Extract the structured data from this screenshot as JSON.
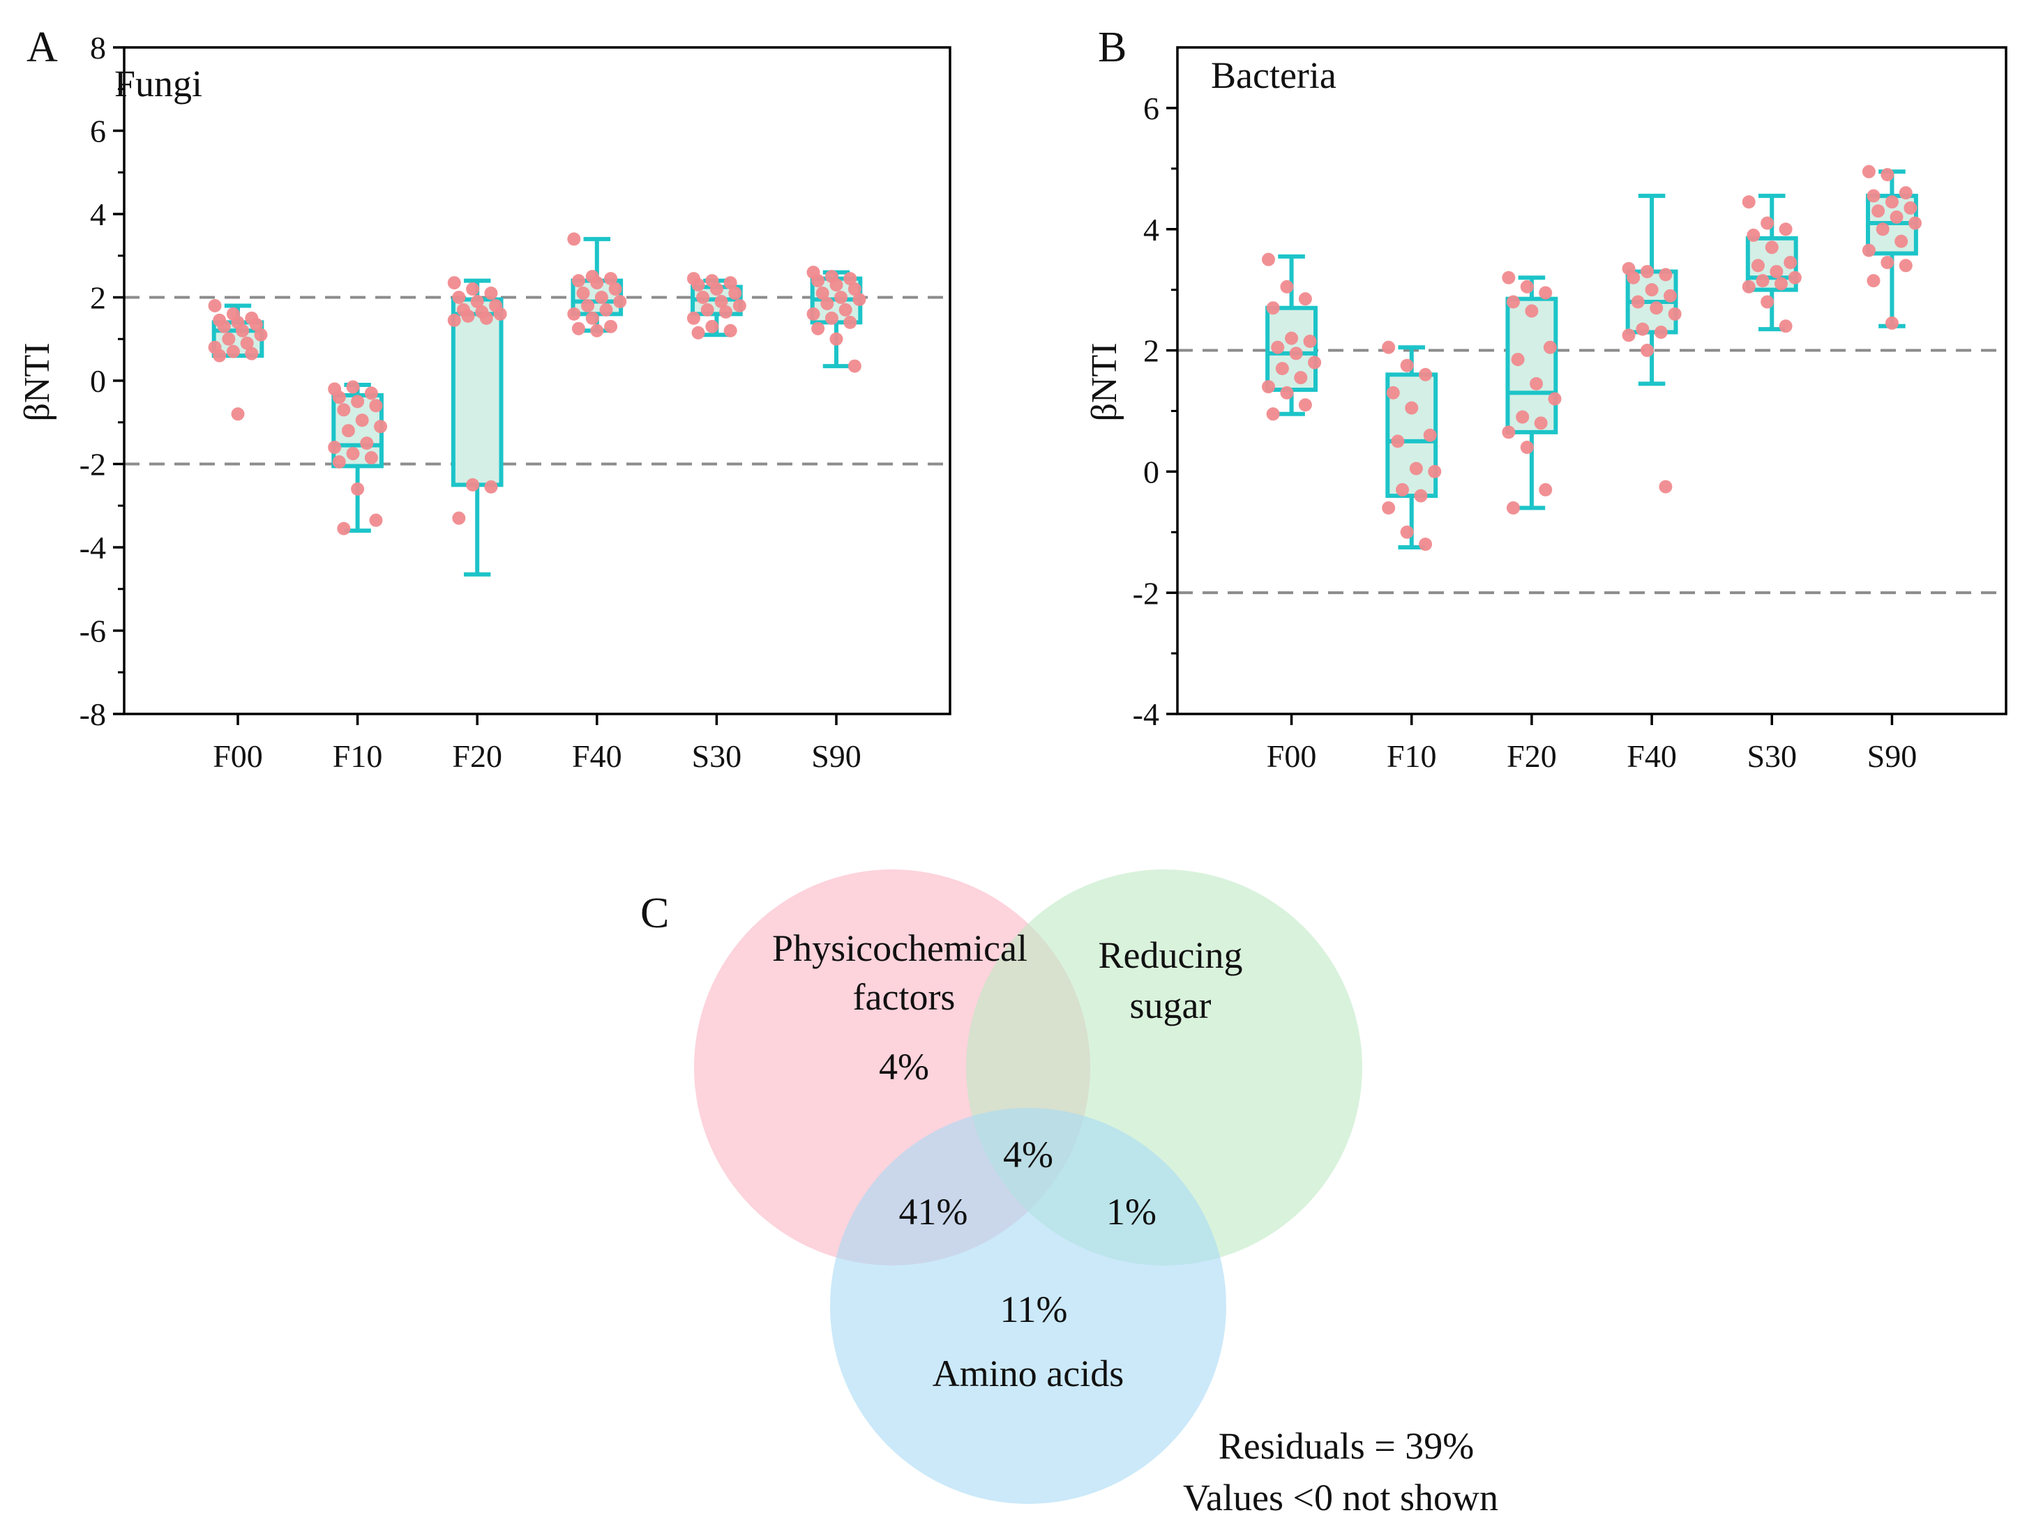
{
  "style": {
    "box_stroke": "#1cc4c8",
    "box_fill": "#d4efe6",
    "point_color": "#f08a8e",
    "threshold_line": "#8c8c8c",
    "axis_color": "#000000",
    "venn_colors": [
      "#fbb6c4",
      "#bfe9c4",
      "#a9daf5"
    ]
  },
  "chart_data": [
    {
      "type": "box",
      "panel_label": "A",
      "title": "Fungi",
      "xlabel": "",
      "ylabel": "βNTI",
      "categories": [
        "F00",
        "F10",
        "F20",
        "F40",
        "S30",
        "S90"
      ],
      "ylim": [
        -8,
        8
      ],
      "yticks": [
        -8,
        -6,
        -4,
        -2,
        0,
        2,
        4,
        6,
        8
      ],
      "threshold_lines": [
        2,
        -2
      ],
      "boxes": [
        {
          "category": "F00",
          "whisker_low": 0.6,
          "q1": 0.6,
          "median": 1.2,
          "q3": 1.4,
          "whisker_high": 1.8,
          "points": [
            1.8,
            1.6,
            1.5,
            1.45,
            1.4,
            1.35,
            1.3,
            1.2,
            1.1,
            1.0,
            0.9,
            0.8,
            0.7,
            0.65,
            0.6,
            -0.8
          ]
        },
        {
          "category": "F10",
          "whisker_low": -3.6,
          "q1": -2.05,
          "median": -1.55,
          "q3": -0.35,
          "whisker_high": -0.1,
          "points": [
            -0.2,
            -0.15,
            -0.3,
            -0.4,
            -0.5,
            -0.6,
            -0.7,
            -0.95,
            -1.1,
            -1.2,
            -1.5,
            -1.6,
            -1.75,
            -1.85,
            -1.95,
            -2.6,
            -3.35,
            -3.55
          ]
        },
        {
          "category": "F20",
          "whisker_low": -4.65,
          "q1": -2.5,
          "median": 1.6,
          "q3": 1.95,
          "whisker_high": 2.4,
          "points": [
            2.35,
            2.2,
            2.1,
            2.0,
            1.9,
            1.8,
            1.7,
            1.65,
            1.6,
            1.55,
            1.5,
            1.45,
            -2.5,
            -2.55,
            -3.3
          ]
        },
        {
          "category": "F40",
          "whisker_low": 1.2,
          "q1": 1.6,
          "median": 1.9,
          "q3": 2.4,
          "whisker_high": 3.4,
          "points": [
            3.4,
            2.5,
            2.45,
            2.4,
            2.35,
            2.2,
            2.1,
            2.0,
            1.9,
            1.8,
            1.7,
            1.6,
            1.5,
            1.3,
            1.25,
            1.2
          ]
        },
        {
          "category": "S30",
          "whisker_low": 1.1,
          "q1": 1.6,
          "median": 1.95,
          "q3": 2.25,
          "whisker_high": 2.4,
          "points": [
            2.45,
            2.4,
            2.35,
            2.3,
            2.2,
            2.1,
            2.0,
            1.9,
            1.8,
            1.7,
            1.65,
            1.5,
            1.3,
            1.2,
            1.15
          ]
        },
        {
          "category": "S90",
          "whisker_low": 0.35,
          "q1": 1.4,
          "median": 1.95,
          "q3": 2.45,
          "whisker_high": 2.6,
          "points": [
            2.6,
            2.5,
            2.45,
            2.4,
            2.3,
            2.2,
            2.1,
            2.0,
            1.95,
            1.85,
            1.7,
            1.6,
            1.5,
            1.4,
            1.25,
            1.0,
            0.35
          ]
        }
      ]
    },
    {
      "type": "box",
      "panel_label": "B",
      "title": "Bacteria",
      "xlabel": "",
      "ylabel": "βNTI",
      "categories": [
        "F00",
        "F10",
        "F20",
        "F40",
        "S30",
        "S90"
      ],
      "ylim": [
        -4,
        7
      ],
      "yticks": [
        -4,
        -2,
        0,
        2,
        4,
        6
      ],
      "threshold_lines": [
        2,
        -2
      ],
      "boxes": [
        {
          "category": "F00",
          "whisker_low": 0.95,
          "q1": 1.35,
          "median": 1.95,
          "q3": 2.7,
          "whisker_high": 3.55,
          "points": [
            3.5,
            3.05,
            2.85,
            2.7,
            2.2,
            2.15,
            2.05,
            1.95,
            1.8,
            1.7,
            1.55,
            1.4,
            1.3,
            1.1,
            0.95
          ]
        },
        {
          "category": "F10",
          "whisker_low": -1.25,
          "q1": -0.4,
          "median": 0.5,
          "q3": 1.6,
          "whisker_high": 2.05,
          "points": [
            2.05,
            1.75,
            1.6,
            1.3,
            1.05,
            0.6,
            0.5,
            0.05,
            0.0,
            -0.3,
            -0.4,
            -0.6,
            -1.0,
            -1.2
          ]
        },
        {
          "category": "F20",
          "whisker_low": -0.6,
          "q1": 0.65,
          "median": 1.3,
          "q3": 2.85,
          "whisker_high": 3.2,
          "points": [
            3.2,
            3.05,
            2.95,
            2.8,
            2.65,
            2.05,
            1.85,
            1.45,
            1.2,
            0.9,
            0.8,
            0.65,
            0.4,
            -0.3,
            -0.6
          ]
        },
        {
          "category": "F40",
          "whisker_low": 1.45,
          "q1": 2.3,
          "median": 2.8,
          "q3": 3.3,
          "whisker_high": 4.55,
          "points": [
            3.35,
            3.3,
            3.25,
            3.2,
            3.0,
            2.9,
            2.8,
            2.7,
            2.6,
            2.35,
            2.3,
            2.25,
            2.0,
            -0.25
          ]
        },
        {
          "category": "S30",
          "whisker_low": 2.35,
          "q1": 3.0,
          "median": 3.2,
          "q3": 3.85,
          "whisker_high": 4.55,
          "points": [
            4.45,
            4.1,
            4.0,
            3.9,
            3.7,
            3.45,
            3.4,
            3.3,
            3.2,
            3.15,
            3.1,
            3.05,
            2.8,
            2.4
          ]
        },
        {
          "category": "S90",
          "whisker_low": 2.4,
          "q1": 3.6,
          "median": 4.1,
          "q3": 4.55,
          "whisker_high": 4.95,
          "points": [
            4.95,
            4.9,
            4.6,
            4.55,
            4.45,
            4.35,
            4.3,
            4.2,
            4.1,
            4.0,
            3.8,
            3.65,
            3.45,
            3.4,
            3.15,
            2.45
          ]
        }
      ]
    },
    {
      "type": "venn",
      "panel_label": "C",
      "sets": [
        {
          "name": "Physicochemical factors",
          "label_lines": [
            "Physicochemical",
            "factors"
          ]
        },
        {
          "name": "Reducing sugar",
          "label_lines": [
            "Reducing",
            "sugar"
          ]
        },
        {
          "name": "Amino acids",
          "label_lines": [
            "Amino acids"
          ]
        }
      ],
      "regions": {
        "physicochemical_only": "4%",
        "all_three": "4%",
        "physicochemical_amino": "41%",
        "reducing_amino": "1%",
        "amino_only": "11%"
      },
      "notes": [
        "Residuals = 39%",
        "Values <0 not shown"
      ]
    }
  ]
}
